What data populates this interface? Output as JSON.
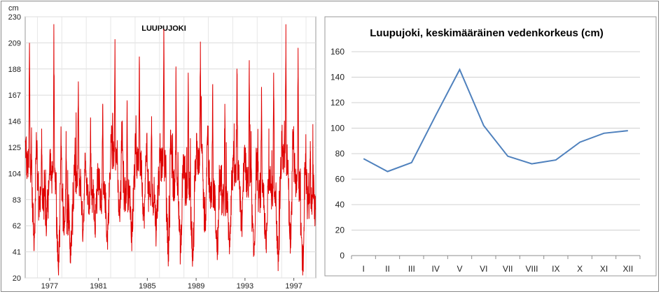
{
  "chart_data": [
    {
      "type": "line",
      "title": "LUUPUJOKI",
      "ylabel": "cm",
      "xlabel": "",
      "ylim": [
        20,
        230
      ],
      "yticks": [
        "230",
        "209",
        "188",
        "167",
        "146",
        "125",
        "104",
        "83",
        "62",
        "41",
        "20"
      ],
      "xticks": [
        "1977",
        "1981",
        "1985",
        "1989",
        "1993",
        "1997"
      ],
      "xlim": [
        1975.0,
        1998.8
      ],
      "series": [
        {
          "color": "#e00000",
          "annual_peaks": [
            {
              "x": 1975.35,
              "y": 209
            },
            {
              "x": 1976.35,
              "y": 140
            },
            {
              "x": 1977.35,
              "y": 208
            },
            {
              "x": 1978.35,
              "y": 138
            },
            {
              "x": 1979.35,
              "y": 178
            },
            {
              "x": 1980.35,
              "y": 149
            },
            {
              "x": 1981.35,
              "y": 160
            },
            {
              "x": 1982.35,
              "y": 212
            },
            {
              "x": 1983.35,
              "y": 160
            },
            {
              "x": 1984.35,
              "y": 198
            },
            {
              "x": 1985.35,
              "y": 150
            },
            {
              "x": 1986.35,
              "y": 220
            },
            {
              "x": 1987.35,
              "y": 190
            },
            {
              "x": 1988.35,
              "y": 185
            },
            {
              "x": 1989.35,
              "y": 210
            },
            {
              "x": 1990.35,
              "y": 175
            },
            {
              "x": 1991.35,
              "y": 160
            },
            {
              "x": 1992.35,
              "y": 185
            },
            {
              "x": 1993.35,
              "y": 195
            },
            {
              "x": 1994.35,
              "y": 170
            },
            {
              "x": 1995.35,
              "y": 185
            },
            {
              "x": 1996.35,
              "y": 224
            },
            {
              "x": 1997.35,
              "y": 205
            },
            {
              "x": 1998.35,
              "y": 130
            }
          ],
          "annual_minima": [
            {
              "x": 1975.75,
              "y": 52
            },
            {
              "x": 1976.75,
              "y": 60
            },
            {
              "x": 1977.75,
              "y": 33
            },
            {
              "x": 1978.75,
              "y": 38
            },
            {
              "x": 1979.75,
              "y": 58
            },
            {
              "x": 1980.75,
              "y": 60
            },
            {
              "x": 1981.75,
              "y": 50
            },
            {
              "x": 1982.75,
              "y": 65
            },
            {
              "x": 1983.75,
              "y": 53
            },
            {
              "x": 1984.75,
              "y": 65
            },
            {
              "x": 1985.75,
              "y": 58
            },
            {
              "x": 1986.75,
              "y": 42
            },
            {
              "x": 1987.75,
              "y": 40
            },
            {
              "x": 1988.75,
              "y": 38
            },
            {
              "x": 1989.75,
              "y": 58
            },
            {
              "x": 1990.75,
              "y": 40
            },
            {
              "x": 1991.75,
              "y": 45
            },
            {
              "x": 1992.75,
              "y": 58
            },
            {
              "x": 1993.75,
              "y": 38
            },
            {
              "x": 1994.75,
              "y": 42
            },
            {
              "x": 1995.75,
              "y": 33
            },
            {
              "x": 1996.75,
              "y": 48
            },
            {
              "x": 1997.75,
              "y": 25
            },
            {
              "x": 1998.75,
              "y": 70
            }
          ]
        }
      ]
    },
    {
      "type": "line",
      "title": "Luupujoki, keskimääräinen vedenkorkeus (cm)",
      "xlabel": "",
      "ylabel": "",
      "ylim": [
        0,
        160
      ],
      "yticks": [
        "0",
        "20",
        "40",
        "60",
        "80",
        "100",
        "120",
        "140",
        "160"
      ],
      "grid": true,
      "categories": [
        "I",
        "II",
        "III",
        "IV",
        "V",
        "VI",
        "VII",
        "VIII",
        "IX",
        "X",
        "XI",
        "XII"
      ],
      "series": [
        {
          "color": "#4f81bd",
          "values": [
            76,
            66,
            73,
            110,
            146,
            102,
            78,
            72,
            75,
            89,
            96,
            98
          ]
        }
      ]
    }
  ]
}
